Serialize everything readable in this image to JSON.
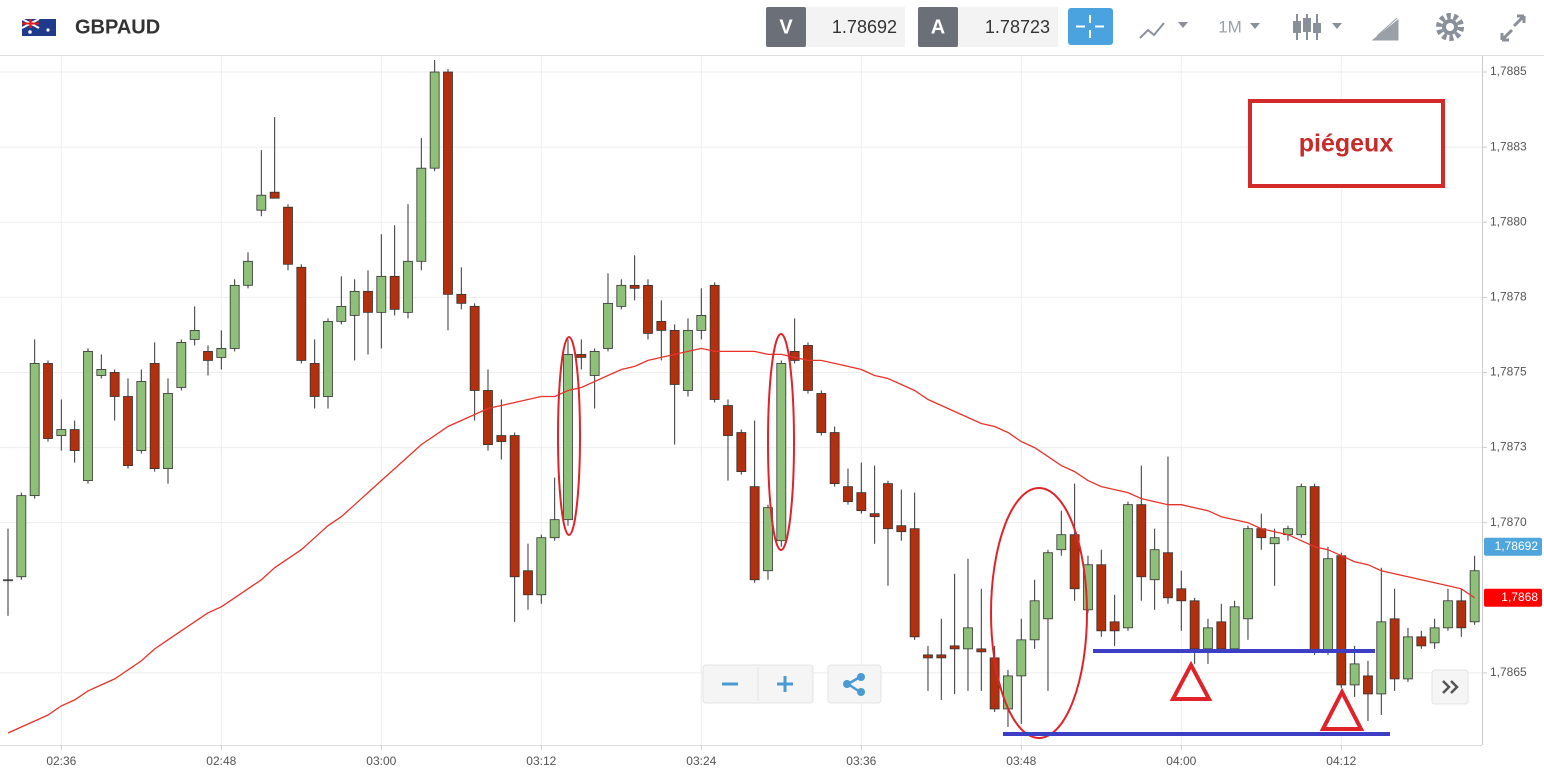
{
  "header": {
    "symbol": "GBPAUD",
    "bid_label": "V",
    "bid": 1.78692,
    "ask_label": "A",
    "ask": 1.78723,
    "timeframe": "1M"
  },
  "chart_data": {
    "type": "candlestick",
    "categories": [
      null,
      null,
      null,
      null,
      "02:36",
      null,
      null,
      null,
      null,
      null,
      null,
      null,
      null,
      null,
      null,
      null,
      "02:48",
      null,
      null,
      null,
      null,
      null,
      null,
      null,
      null,
      null,
      null,
      null,
      "03:00",
      null,
      null,
      null,
      null,
      null,
      null,
      null,
      null,
      null,
      null,
      null,
      "03:12",
      null,
      null,
      null,
      null,
      null,
      null,
      null,
      null,
      null,
      null,
      null,
      "03:24",
      null,
      null,
      null,
      null,
      null,
      null,
      null,
      null,
      null,
      null,
      null,
      "03:36",
      null,
      null,
      null,
      null,
      null,
      null,
      null,
      null,
      null,
      null,
      null,
      "03:48",
      null,
      null,
      null,
      null,
      null,
      null,
      null,
      null,
      null,
      null,
      null,
      "04:00",
      null,
      null,
      null,
      null,
      null,
      null,
      null,
      null,
      null,
      null,
      null,
      "04:12",
      null,
      null,
      null,
      null,
      null,
      null,
      null,
      null,
      null,
      null
    ],
    "open": [
      1.78681,
      1.78682,
      1.78709,
      1.78753,
      1.78729,
      1.78731,
      1.78714,
      1.78749,
      1.7875,
      1.78742,
      1.78724,
      1.78753,
      1.78718,
      1.78745,
      1.78761,
      1.78757,
      1.78755,
      1.78758,
      1.78779,
      1.78804,
      1.7881,
      1.78805,
      1.78785,
      1.78753,
      1.78742,
      1.78767,
      1.78769,
      1.78777,
      1.7877,
      1.78782,
      1.7877,
      1.78787,
      1.78818,
      1.7885,
      1.78776,
      1.78772,
      1.78744,
      1.78729,
      1.78729,
      1.78684,
      1.78676,
      1.78695,
      1.78701,
      1.78756,
      1.78749,
      1.78758,
      1.78772,
      1.78779,
      1.78779,
      1.78767,
      1.78764,
      1.78744,
      1.78764,
      1.78779,
      1.78739,
      1.7873,
      1.78712,
      1.78684,
      1.78694,
      1.78757,
      1.78759,
      1.78743,
      1.7873,
      1.78712,
      1.7871,
      1.78703,
      1.78713,
      1.78699,
      1.78698,
      1.78656,
      1.78656,
      1.78659,
      1.78658,
      1.78658,
      1.78655,
      1.78638,
      1.78649,
      1.78661,
      1.78668,
      1.78691,
      1.78696,
      1.78671,
      1.78686,
      1.78667,
      1.78665,
      1.78706,
      1.78681,
      1.7869,
      1.78678,
      1.78674,
      1.78658,
      1.78667,
      1.78658,
      1.78668,
      1.78698,
      1.78693,
      1.78696,
      1.78696,
      1.78712,
      1.78657,
      1.78689,
      1.78646,
      1.78649,
      1.78643,
      1.78668,
      1.78648,
      1.78662,
      1.7866,
      1.78665,
      1.78674,
      1.78667
    ],
    "high": [
      1.78698,
      1.7871,
      1.78761,
      1.78754,
      1.78741,
      1.78734,
      1.78758,
      1.78756,
      1.78751,
      1.78748,
      1.78751,
      1.7876,
      1.78748,
      1.78761,
      1.78772,
      1.78759,
      1.78764,
      1.78781,
      1.7879,
      1.78824,
      1.78835,
      1.78806,
      1.78786,
      1.78761,
      1.78768,
      1.78782,
      1.78781,
      1.78784,
      1.78796,
      1.78799,
      1.78806,
      1.78828,
      1.78854,
      1.78851,
      1.78785,
      1.78773,
      1.78751,
      1.78741,
      1.7873,
      1.78693,
      1.78696,
      1.78715,
      1.78761,
      1.78761,
      1.78758,
      1.78783,
      1.78781,
      1.78789,
      1.78781,
      1.78774,
      1.78766,
      1.78768,
      1.78778,
      1.7878,
      1.78741,
      1.78731,
      1.78734,
      1.78706,
      1.78754,
      1.78768,
      1.7876,
      1.78744,
      1.78732,
      1.78718,
      1.7872,
      1.78719,
      1.78714,
      1.78711,
      1.7871,
      1.78659,
      1.78668,
      1.78683,
      1.78688,
      1.78678,
      1.78659,
      1.78651,
      1.78668,
      1.78681,
      1.78691,
      1.78704,
      1.78713,
      1.78689,
      1.78691,
      1.78676,
      1.78707,
      1.78719,
      1.78698,
      1.78722,
      1.78684,
      1.78675,
      1.78668,
      1.78673,
      1.78674,
      1.78699,
      1.78703,
      1.78698,
      1.78699,
      1.78713,
      1.78713,
      1.78692,
      1.7869,
      1.78659,
      1.78654,
      1.78685,
      1.78678,
      1.78665,
      1.78664,
      1.78668,
      1.78678,
      1.78678,
      1.78689
    ],
    "low": [
      1.78669,
      1.78681,
      1.78708,
      1.78727,
      1.78724,
      1.7872,
      1.78713,
      1.78748,
      1.78734,
      1.78718,
      1.78723,
      1.78717,
      1.78713,
      1.78744,
      1.78759,
      1.78749,
      1.78751,
      1.78757,
      1.78778,
      1.78802,
      1.78808,
      1.78784,
      1.78753,
      1.78738,
      1.78738,
      1.78766,
      1.78754,
      1.78756,
      1.78758,
      1.78769,
      1.78768,
      1.78784,
      1.78817,
      1.78764,
      1.78771,
      1.78734,
      1.78724,
      1.78721,
      1.78667,
      1.78671,
      1.78673,
      1.78694,
      1.78699,
      1.78751,
      1.78738,
      1.78757,
      1.78771,
      1.78774,
      1.78761,
      1.78754,
      1.78726,
      1.78742,
      1.78761,
      1.7874,
      1.78714,
      1.78716,
      1.7868,
      1.78681,
      1.78692,
      1.78753,
      1.78743,
      1.78729,
      1.78712,
      1.78706,
      1.78703,
      1.78693,
      1.78679,
      1.78694,
      1.78661,
      1.78644,
      1.78641,
      1.78643,
      1.78644,
      1.78644,
      1.78637,
      1.78632,
      1.78633,
      1.78658,
      1.78644,
      1.78689,
      1.78674,
      1.7867,
      1.78662,
      1.78659,
      1.78664,
      1.78674,
      1.78671,
      1.78673,
      1.78664,
      1.78653,
      1.78653,
      1.78657,
      1.78657,
      1.78661,
      1.78691,
      1.78679,
      1.78694,
      1.78695,
      1.78656,
      1.78656,
      1.78645,
      1.78642,
      1.78634,
      1.78636,
      1.78644,
      1.78647,
      1.78658,
      1.78658,
      1.78664,
      1.78662,
      1.78666
    ],
    "close": [
      1.78681,
      1.78709,
      1.78753,
      1.78728,
      1.78731,
      1.78724,
      1.78757,
      1.78751,
      1.78742,
      1.78719,
      1.78747,
      1.78718,
      1.78743,
      1.7876,
      1.78764,
      1.78754,
      1.78758,
      1.78779,
      1.78787,
      1.78809,
      1.78808,
      1.78786,
      1.78754,
      1.78742,
      1.78767,
      1.78772,
      1.78777,
      1.7877,
      1.78782,
      1.78771,
      1.78787,
      1.78818,
      1.7885,
      1.78776,
      1.78773,
      1.78744,
      1.78726,
      1.78727,
      1.78682,
      1.78676,
      1.78695,
      1.78701,
      1.78756,
      1.78755,
      1.78757,
      1.78773,
      1.78779,
      1.78778,
      1.78763,
      1.78764,
      1.78746,
      1.78764,
      1.78769,
      1.78741,
      1.78729,
      1.78717,
      1.78681,
      1.78705,
      1.78753,
      1.78754,
      1.78744,
      1.7873,
      1.78713,
      1.78707,
      1.78704,
      1.78702,
      1.78698,
      1.78697,
      1.78662,
      1.78655,
      1.78655,
      1.78658,
      1.78665,
      1.78657,
      1.78638,
      1.78649,
      1.78661,
      1.78674,
      1.7869,
      1.78696,
      1.78678,
      1.78686,
      1.78664,
      1.78664,
      1.78706,
      1.78682,
      1.78691,
      1.78675,
      1.78674,
      1.78658,
      1.78665,
      1.78658,
      1.78672,
      1.78698,
      1.78695,
      1.78695,
      1.78698,
      1.78712,
      1.78657,
      1.78688,
      1.78646,
      1.78653,
      1.78643,
      1.78667,
      1.78648,
      1.78662,
      1.78659,
      1.78665,
      1.78674,
      1.78665,
      1.78684
    ],
    "up_color": "#8fc07a",
    "down_color": "#b3300f",
    "ma": {
      "color": "#e8332a",
      "values": [
        1.7863,
        1.78632,
        1.78634,
        1.78636,
        1.78639,
        1.78641,
        1.78644,
        1.78646,
        1.78648,
        1.78651,
        1.78654,
        1.78658,
        1.78661,
        1.78664,
        1.78667,
        1.7867,
        1.78672,
        1.78675,
        1.78678,
        1.78681,
        1.78685,
        1.78688,
        1.78691,
        1.78695,
        1.78699,
        1.78702,
        1.78706,
        1.7871,
        1.78714,
        1.78718,
        1.78722,
        1.78726,
        1.78729,
        1.78732,
        1.78734,
        1.78736,
        1.78738,
        1.78739,
        1.7874,
        1.78741,
        1.78742,
        1.78742,
        1.78744,
        1.78745,
        1.78747,
        1.78749,
        1.78751,
        1.78752,
        1.78754,
        1.78755,
        1.78756,
        1.78757,
        1.78758,
        1.78757,
        1.78757,
        1.78757,
        1.78757,
        1.78756,
        1.78756,
        1.78755,
        1.78754,
        1.78754,
        1.78753,
        1.78752,
        1.78751,
        1.78749,
        1.78748,
        1.78746,
        1.78744,
        1.78741,
        1.78739,
        1.78737,
        1.78735,
        1.78733,
        1.78732,
        1.7873,
        1.78727,
        1.78725,
        1.78722,
        1.78719,
        1.78717,
        1.78714,
        1.78712,
        1.78711,
        1.7871,
        1.78708,
        1.78707,
        1.78706,
        1.78706,
        1.78705,
        1.78704,
        1.78702,
        1.78701,
        1.787,
        1.78698,
        1.78697,
        1.78696,
        1.78694,
        1.78692,
        1.78691,
        1.78689,
        1.78687,
        1.78686,
        1.78684,
        1.78683,
        1.78682,
        1.78681,
        1.7868,
        1.78679,
        1.78678,
        1.78675
      ]
    },
    "ylim": [
      1.78626,
      1.78855
    ],
    "yticks": [
      {
        "value": 1.7885,
        "label": "1,7885"
      },
      {
        "value": 1.78825,
        "label": "1,7883"
      },
      {
        "value": 1.788,
        "label": "1,7880"
      },
      {
        "value": 1.78775,
        "label": "1,7878"
      },
      {
        "value": 1.7875,
        "label": "1,7875"
      },
      {
        "value": 1.78725,
        "label": "1,7873"
      },
      {
        "value": 1.787,
        "label": "1,7870"
      },
      {
        "value": 1.7865,
        "label": "1,7865"
      }
    ],
    "price_tags": [
      {
        "value": 1.78692,
        "label": "1,78692",
        "color": "#4ea6dc"
      },
      {
        "value": 1.78675,
        "label": "1,7868",
        "color": "#ff0000"
      }
    ],
    "grid": true,
    "annotation": "piégeux"
  }
}
